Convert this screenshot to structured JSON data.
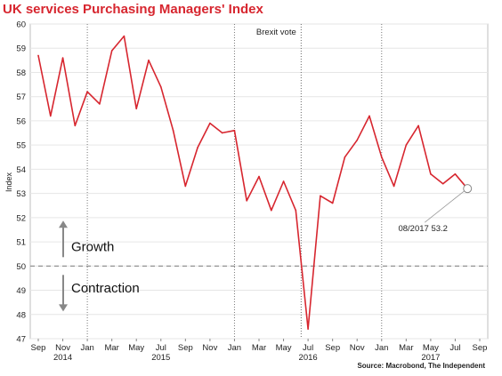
{
  "chart_data": {
    "type": "line",
    "title": "UK services Purchasing Managers' Index",
    "ylabel": "Index",
    "xlabel": "",
    "ylim": [
      47,
      60
    ],
    "yticks": [
      47,
      48,
      49,
      50,
      51,
      52,
      53,
      54,
      55,
      56,
      57,
      58,
      59,
      60
    ],
    "x_tick_labels": [
      "Sep",
      "Nov",
      "Jan",
      "Mar",
      "May",
      "Jul",
      "Sep",
      "Nov",
      "Jan",
      "Mar",
      "May",
      "Jul",
      "Sep",
      "Nov",
      "Jan",
      "Mar",
      "May",
      "Jul",
      "Sep"
    ],
    "x_year_labels": [
      {
        "label": "2014",
        "month": "2014-11"
      },
      {
        "label": "2015",
        "month": "2015-07"
      },
      {
        "label": "2016",
        "month": "2016-07"
      },
      {
        "label": "2017",
        "month": "2017-05"
      }
    ],
    "year_dividers": [
      "2015-01",
      "2016-01",
      "2017-01"
    ],
    "grid": true,
    "x": [
      "2014-09",
      "2014-10",
      "2014-11",
      "2014-12",
      "2015-01",
      "2015-02",
      "2015-03",
      "2015-04",
      "2015-05",
      "2015-06",
      "2015-07",
      "2015-08",
      "2015-09",
      "2015-10",
      "2015-11",
      "2015-12",
      "2016-01",
      "2016-02",
      "2016-03",
      "2016-04",
      "2016-05",
      "2016-06",
      "2016-07",
      "2016-08",
      "2016-09",
      "2016-10",
      "2016-11",
      "2016-12",
      "2017-01",
      "2017-02",
      "2017-03",
      "2017-04",
      "2017-05",
      "2017-06",
      "2017-07",
      "2017-08"
    ],
    "values": [
      58.7,
      56.2,
      58.6,
      55.8,
      57.2,
      56.7,
      58.9,
      59.5,
      56.5,
      58.5,
      57.4,
      55.6,
      53.3,
      54.9,
      55.9,
      55.5,
      55.6,
      52.7,
      53.7,
      52.3,
      53.5,
      52.3,
      47.4,
      52.9,
      52.6,
      54.5,
      55.2,
      56.2,
      54.5,
      53.3,
      55.0,
      55.8,
      53.8,
      53.4,
      53.8,
      53.2
    ],
    "line_color": "#d7262f",
    "reference_line": {
      "value": 50
    },
    "event_line": {
      "label": "Brexit vote",
      "month": "2016-06"
    },
    "point_annotation": {
      "label": "08/2017 53.2",
      "month": "2017-08",
      "value": 53.2
    },
    "zone_labels": {
      "upper": "Growth",
      "lower": "Contraction"
    },
    "source": "Source: Macrobond, The Independent"
  }
}
